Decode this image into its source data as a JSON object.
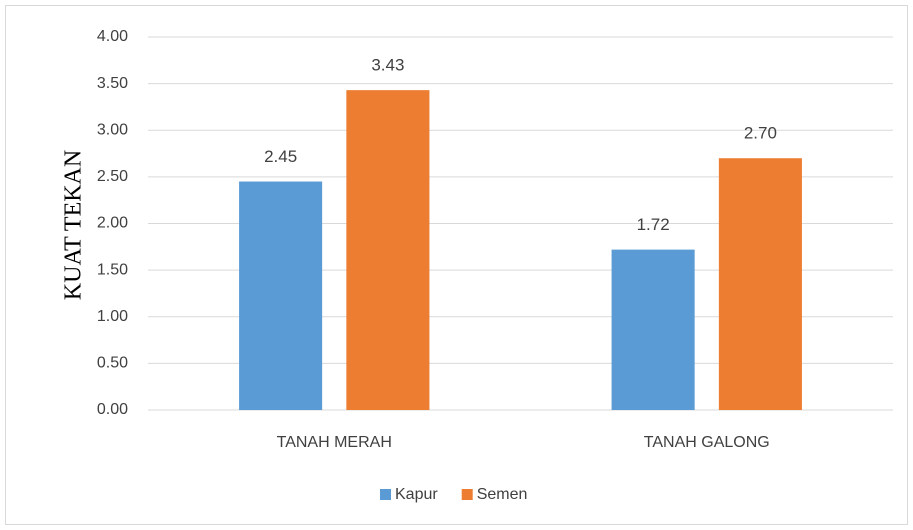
{
  "chart_data": {
    "type": "bar",
    "y_label": "KUAT TEKAN",
    "categories": [
      "TANAH MERAH",
      "TANAH GALONG"
    ],
    "series": [
      {
        "name": "Kapur",
        "color": "#5b9bd5",
        "values": [
          2.45,
          1.72
        ],
        "value_labels": [
          "2.45",
          "1.72"
        ]
      },
      {
        "name": "Semen",
        "color": "#ed7d31",
        "values": [
          3.43,
          2.7
        ],
        "value_labels": [
          "3.43",
          "2.70"
        ]
      }
    ],
    "ylim": [
      0,
      4
    ],
    "yticks": [
      {
        "value": 0,
        "label": "0.00"
      },
      {
        "value": 0.5,
        "label": "0.50"
      },
      {
        "value": 1,
        "label": "1.00"
      },
      {
        "value": 1.5,
        "label": "1.50"
      },
      {
        "value": 2,
        "label": "2.00"
      },
      {
        "value": 2.5,
        "label": "2.50"
      },
      {
        "value": 3,
        "label": "3.00"
      },
      {
        "value": 3.5,
        "label": "3.50"
      },
      {
        "value": 4,
        "label": "4.00"
      }
    ],
    "grid": true,
    "legend": "bottom"
  }
}
